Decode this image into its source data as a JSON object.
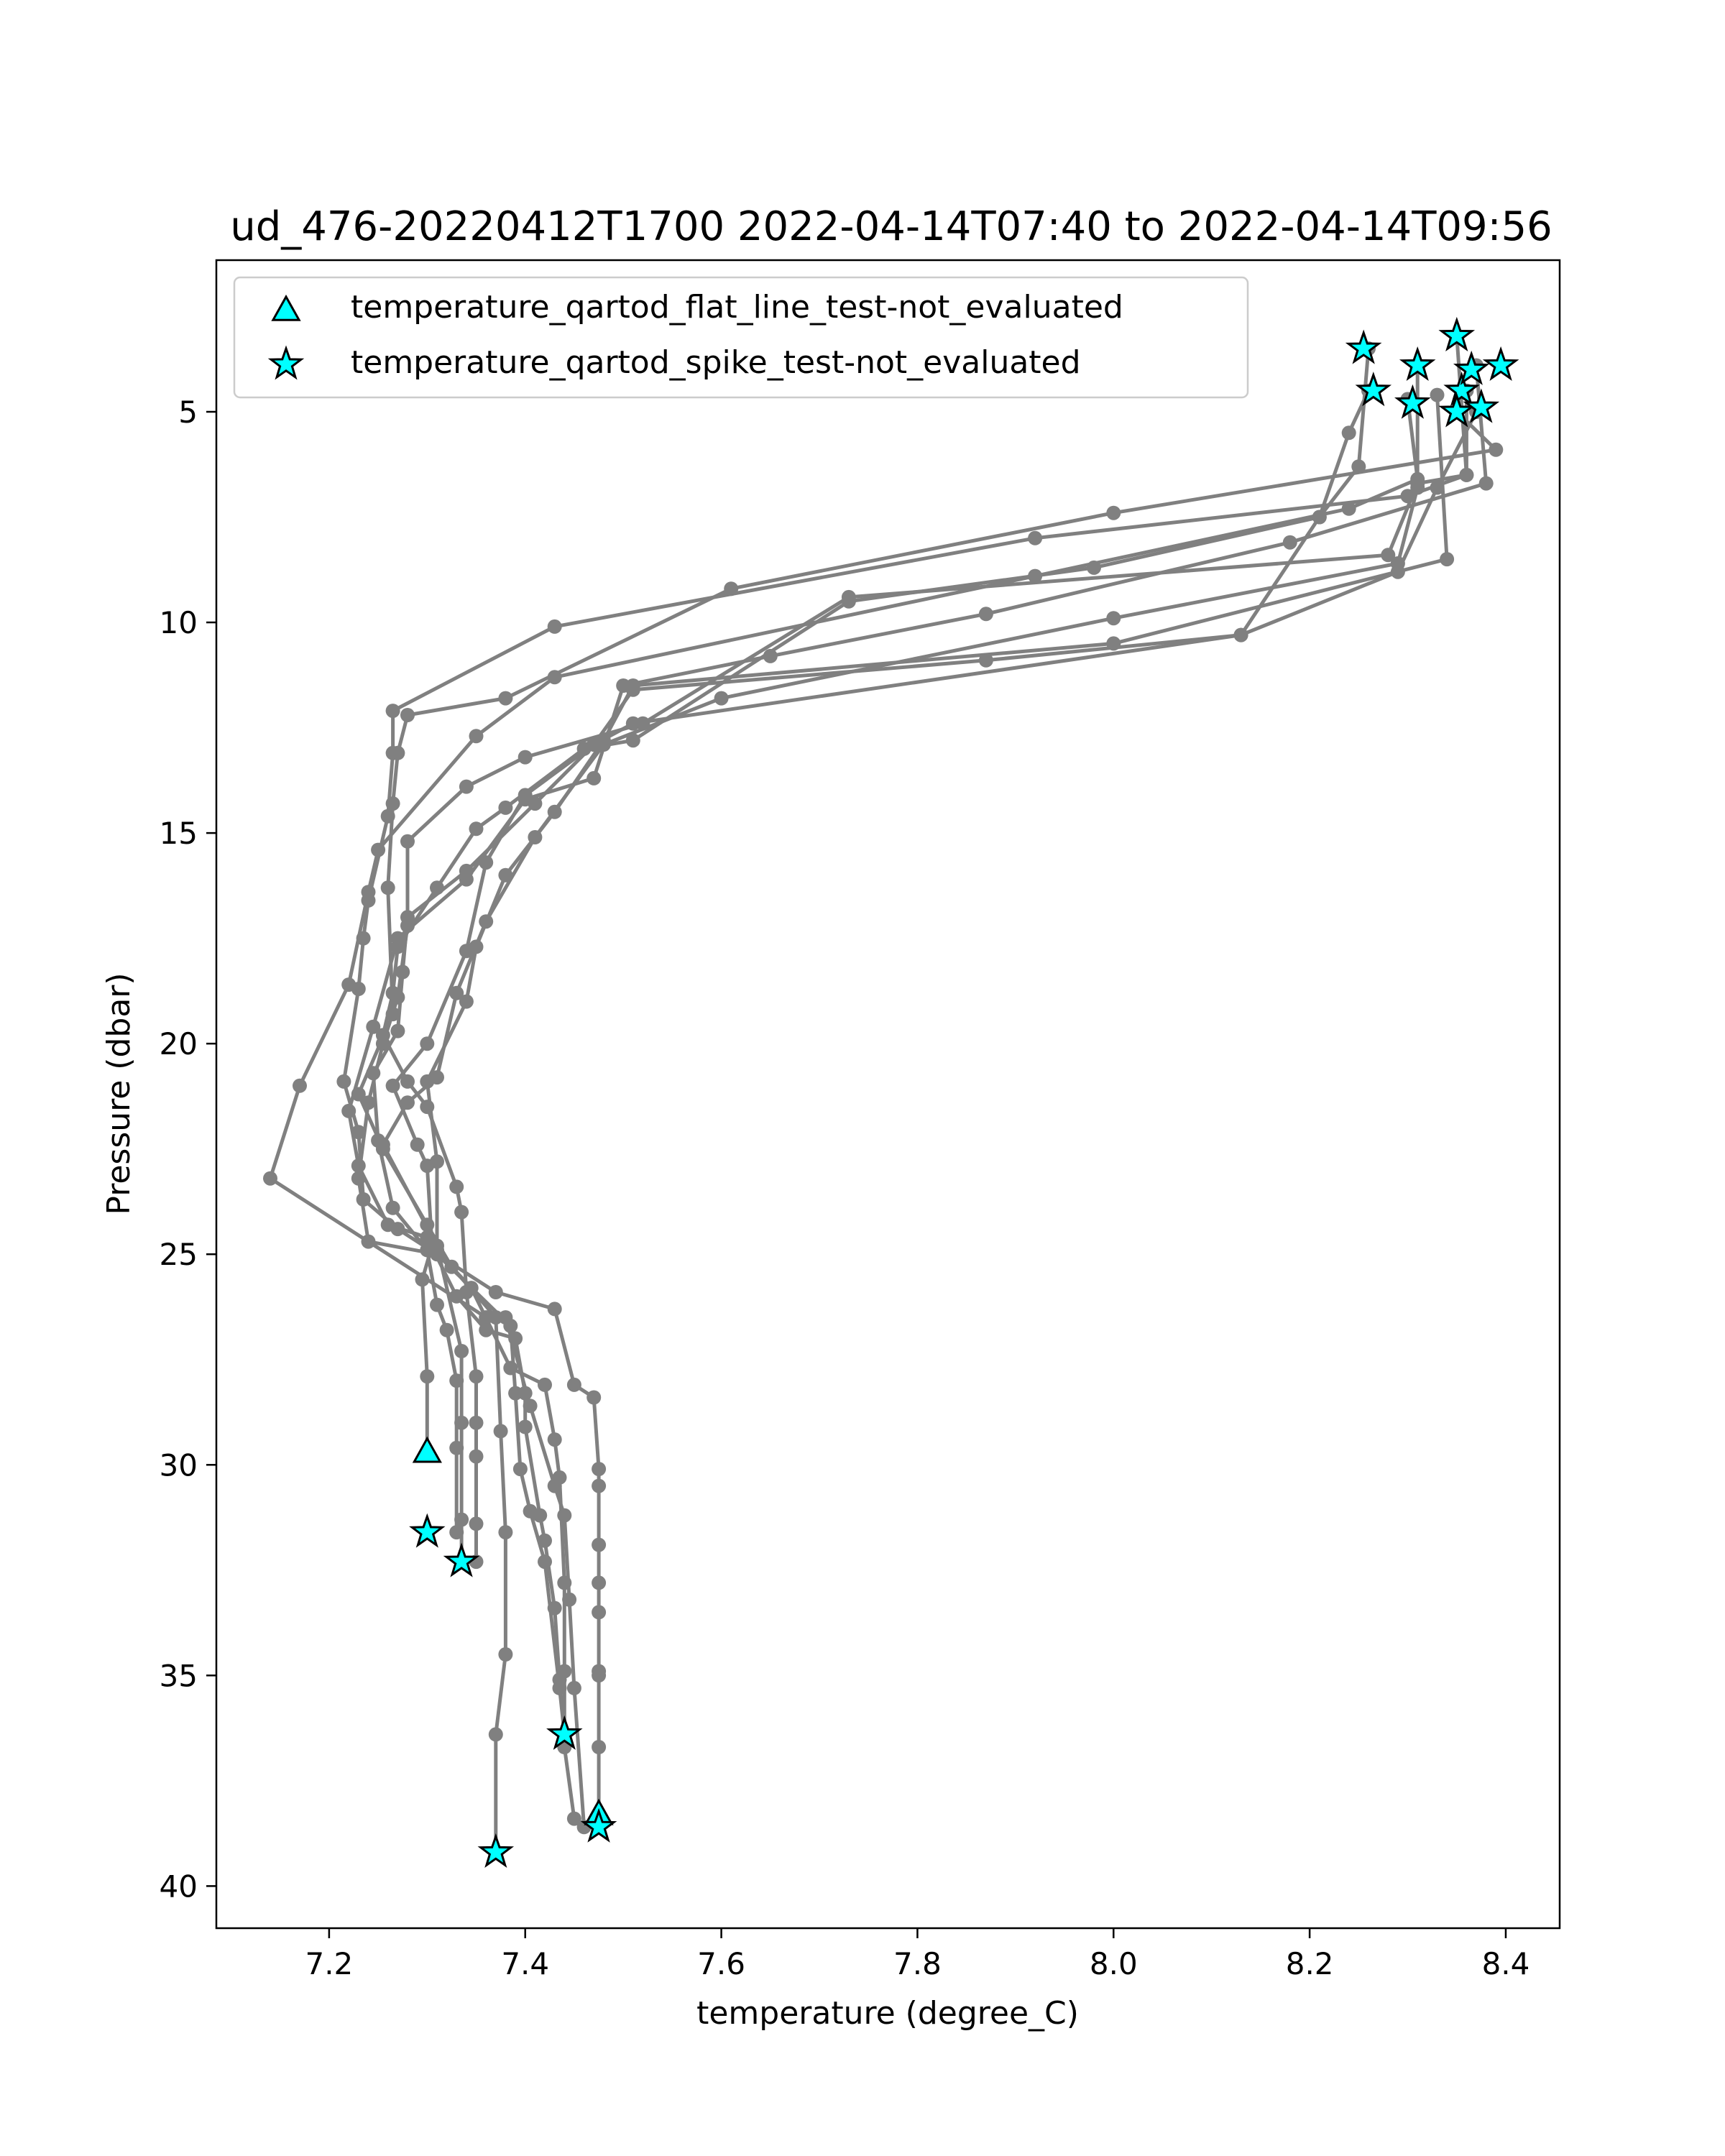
{
  "chart_data": {
    "type": "line",
    "title": "ud_476-20220412T1700 2022-04-14T07:40 to 2022-04-14T09:56",
    "xlabel": "temperature (degree_C)",
    "ylabel": "Pressure (dbar)",
    "xlim": [
      7.085,
      8.455
    ],
    "ylim": [
      41.0,
      1.4
    ],
    "y_inverted": true,
    "xticks": [
      7.2,
      7.4,
      7.6,
      7.8,
      8.0,
      8.2,
      8.4
    ],
    "xtick_labels": [
      "7.2",
      "7.4",
      "7.6",
      "7.8",
      "8.0",
      "8.2",
      "8.4"
    ],
    "yticks": [
      5,
      10,
      15,
      20,
      25,
      30,
      35,
      40
    ],
    "ytick_labels": [
      "5",
      "10",
      "15",
      "20",
      "25",
      "30",
      "35",
      "40"
    ],
    "grid": false,
    "legend_position": "top-left",
    "line_color": "#808080",
    "marker_color": "#00ffff",
    "legend": [
      {
        "label": "temperature_qartod_flat_line_test-not_evaluated",
        "marker": "triangle"
      },
      {
        "label": "temperature_qartod_spike_test-not_evaluated",
        "marker": "star"
      }
    ],
    "profiles": [
      {
        "points": [
          [
            8.33,
            4.6
          ],
          [
            8.34,
            8.5
          ],
          [
            8.0,
            10.5
          ],
          [
            7.51,
            11.5
          ],
          [
            7.48,
            12.8
          ],
          [
            7.43,
            14.5
          ],
          [
            7.38,
            16.0
          ],
          [
            7.35,
            17.7
          ],
          [
            7.34,
            19.0
          ],
          [
            7.3,
            20.9
          ],
          [
            7.31,
            22.8
          ],
          [
            7.31,
            24.9
          ],
          [
            7.37,
            26.5
          ],
          [
            7.375,
            29.2
          ],
          [
            7.38,
            31.6
          ],
          [
            7.38,
            34.5
          ],
          [
            7.37,
            36.4
          ],
          [
            7.37,
            39.2
          ]
        ]
      },
      {
        "points": [
          [
            8.37,
            3.9
          ],
          [
            8.38,
            6.7
          ],
          [
            8.18,
            8.1
          ],
          [
            7.87,
            9.8
          ],
          [
            7.65,
            10.8
          ],
          [
            7.5,
            11.5
          ],
          [
            7.47,
            13.7
          ],
          [
            7.4,
            14.2
          ],
          [
            7.34,
            16.1
          ],
          [
            7.27,
            17.5
          ],
          [
            7.245,
            19.6
          ],
          [
            7.22,
            21.6
          ],
          [
            7.23,
            22.9
          ],
          [
            7.26,
            24.3
          ],
          [
            7.3,
            24.6
          ],
          [
            7.33,
            26.0
          ],
          [
            7.36,
            26.8
          ],
          [
            7.39,
            27.0
          ],
          [
            7.4,
            28.3
          ],
          [
            7.4,
            29.1
          ],
          [
            7.415,
            31.2
          ],
          [
            7.42,
            31.8
          ],
          [
            7.43,
            33.4
          ],
          [
            7.435,
            35.1
          ],
          [
            7.44,
            36.4
          ]
        ]
      },
      {
        "points": [
          [
            8.36,
            4.5
          ],
          [
            8.36,
            6.5
          ],
          [
            8.31,
            6.7
          ],
          [
            8.28,
            8.4
          ],
          [
            7.73,
            9.4
          ],
          [
            7.52,
            12.4
          ],
          [
            7.4,
            13.2
          ],
          [
            7.34,
            13.9
          ],
          [
            7.28,
            15.2
          ],
          [
            7.28,
            17.2
          ],
          [
            7.27,
            18.9
          ],
          [
            7.255,
            20.0
          ],
          [
            7.24,
            21.4
          ],
          [
            7.23,
            23.2
          ],
          [
            7.24,
            24.7
          ],
          [
            7.31,
            25.0
          ],
          [
            7.385,
            26.7
          ],
          [
            7.39,
            28.3
          ],
          [
            7.395,
            30.1
          ],
          [
            7.405,
            31.1
          ],
          [
            7.42,
            32.3
          ],
          [
            7.435,
            35.3
          ],
          [
            7.44,
            36.4
          ]
        ]
      },
      {
        "points": [
          [
            8.35,
            5.0
          ],
          [
            8.39,
            5.9
          ],
          [
            8.0,
            7.4
          ],
          [
            7.61,
            9.2
          ],
          [
            7.38,
            11.8
          ],
          [
            7.28,
            12.2
          ],
          [
            7.27,
            13.1
          ],
          [
            7.265,
            14.3
          ],
          [
            7.26,
            16.3
          ],
          [
            7.265,
            19.3
          ],
          [
            7.23,
            21.2
          ],
          [
            7.255,
            22.5
          ],
          [
            7.3,
            24.3
          ],
          [
            7.325,
            25.3
          ],
          [
            7.345,
            25.8
          ],
          [
            7.385,
            27.7
          ],
          [
            7.42,
            28.1
          ],
          [
            7.43,
            29.4
          ],
          [
            7.435,
            30.3
          ],
          [
            7.44,
            32.8
          ],
          [
            7.44,
            34.9
          ],
          [
            7.44,
            36.7
          ],
          [
            7.45,
            38.4
          ]
        ]
      },
      {
        "points": [
          [
            8.35,
            3.2
          ],
          [
            8.36,
            6.5
          ],
          [
            8.3,
            7.0
          ],
          [
            7.92,
            8.0
          ],
          [
            7.43,
            10.1
          ],
          [
            7.265,
            12.1
          ],
          [
            7.265,
            13.1
          ],
          [
            7.26,
            14.6
          ],
          [
            7.24,
            16.6
          ],
          [
            7.235,
            17.5
          ],
          [
            7.23,
            18.7
          ],
          [
            7.215,
            20.9
          ],
          [
            7.23,
            22.1
          ],
          [
            7.235,
            23.7
          ],
          [
            7.27,
            24.4
          ],
          [
            7.37,
            25.9
          ],
          [
            7.43,
            26.3
          ],
          [
            7.45,
            28.1
          ],
          [
            7.47,
            28.4
          ],
          [
            7.475,
            30.1
          ],
          [
            7.475,
            30.5
          ],
          [
            7.475,
            31.9
          ],
          [
            7.475,
            32.8
          ],
          [
            7.475,
            33.5
          ],
          [
            7.475,
            34.9
          ],
          [
            7.475,
            35.0
          ],
          [
            7.475,
            36.7
          ],
          [
            7.475,
            38.4
          ]
        ]
      },
      {
        "points": [
          [
            8.3,
            4.7
          ],
          [
            8.31,
            6.6
          ],
          [
            8.24,
            7.3
          ],
          [
            7.92,
            8.9
          ],
          [
            7.43,
            11.3
          ],
          [
            7.35,
            12.7
          ],
          [
            7.25,
            15.4
          ],
          [
            7.24,
            16.4
          ],
          [
            7.22,
            18.6
          ],
          [
            7.17,
            21.0
          ],
          [
            7.14,
            23.2
          ],
          [
            7.36,
            26.5
          ],
          [
            7.38,
            26.5
          ],
          [
            7.405,
            28.6
          ],
          [
            7.43,
            30.5
          ],
          [
            7.44,
            31.2
          ],
          [
            7.445,
            33.2
          ],
          [
            7.45,
            35.3
          ],
          [
            7.46,
            38.6
          ]
        ]
      },
      {
        "points": [
          [
            8.26,
            3.5
          ],
          [
            8.25,
            6.3
          ],
          [
            8.21,
            7.5
          ],
          [
            7.98,
            8.7
          ],
          [
            7.73,
            9.5
          ],
          [
            7.51,
            12.8
          ],
          [
            7.46,
            13.0
          ],
          [
            7.38,
            14.4
          ],
          [
            7.35,
            14.9
          ],
          [
            7.31,
            16.3
          ],
          [
            7.27,
            17.7
          ],
          [
            7.265,
            18.8
          ],
          [
            7.255,
            19.8
          ],
          [
            7.28,
            20.9
          ],
          [
            7.3,
            21.5
          ],
          [
            7.33,
            23.4
          ],
          [
            7.335,
            24.0
          ],
          [
            7.34,
            25.9
          ],
          [
            7.35,
            27.9
          ],
          [
            7.35,
            29.0
          ],
          [
            7.35,
            29.8
          ],
          [
            7.35,
            31.4
          ],
          [
            7.35,
            32.3
          ]
        ]
      },
      {
        "points": [
          [
            8.26,
            4.5
          ],
          [
            8.24,
            5.5
          ],
          [
            8.21,
            7.5
          ],
          [
            8.13,
            10.3
          ],
          [
            7.87,
            10.9
          ],
          [
            7.51,
            11.6
          ],
          [
            7.47,
            12.9
          ],
          [
            7.4,
            14.1
          ],
          [
            7.36,
            15.7
          ],
          [
            7.34,
            17.8
          ],
          [
            7.3,
            20.0
          ],
          [
            7.265,
            21.0
          ],
          [
            7.29,
            22.4
          ],
          [
            7.3,
            22.9
          ],
          [
            7.305,
            24.8
          ],
          [
            7.295,
            25.6
          ],
          [
            7.3,
            27.9
          ],
          [
            7.3,
            29.7
          ]
        ]
      },
      {
        "points": [
          [
            8.31,
            3.9
          ],
          [
            8.31,
            6.8
          ],
          [
            8.29,
            8.6
          ],
          [
            8.0,
            9.9
          ],
          [
            7.6,
            11.8
          ],
          [
            7.48,
            12.9
          ],
          [
            7.41,
            15.1
          ],
          [
            7.36,
            17.1
          ],
          [
            7.33,
            18.8
          ],
          [
            7.31,
            20.8
          ],
          [
            7.28,
            21.4
          ],
          [
            7.255,
            22.4
          ],
          [
            7.31,
            24.8
          ],
          [
            7.335,
            27.3
          ],
          [
            7.335,
            29.0
          ],
          [
            7.335,
            31.3
          ],
          [
            7.335,
            32.3
          ]
        ]
      },
      {
        "points": [
          [
            8.37,
            5.0
          ],
          [
            8.33,
            6.8
          ],
          [
            8.29,
            8.8
          ],
          [
            8.13,
            10.3
          ],
          [
            7.51,
            12.4
          ],
          [
            7.47,
            12.9
          ],
          [
            7.41,
            14.3
          ],
          [
            7.34,
            15.9
          ],
          [
            7.28,
            17.0
          ],
          [
            7.275,
            18.3
          ],
          [
            7.27,
            19.7
          ],
          [
            7.245,
            20.7
          ],
          [
            7.25,
            22.3
          ],
          [
            7.265,
            23.9
          ],
          [
            7.3,
            24.9
          ],
          [
            7.31,
            26.2
          ],
          [
            7.32,
            26.8
          ],
          [
            7.33,
            28.0
          ],
          [
            7.33,
            29.6
          ],
          [
            7.33,
            31.6
          ]
        ]
      }
    ],
    "flat_line_markers": [
      [
        7.3,
        29.7
      ],
      [
        7.475,
        38.3
      ]
    ],
    "spike_markers": [
      [
        8.255,
        3.5
      ],
      [
        8.265,
        4.5
      ],
      [
        8.31,
        3.9
      ],
      [
        8.305,
        4.8
      ],
      [
        8.35,
        3.2
      ],
      [
        8.355,
        4.5
      ],
      [
        8.35,
        5.0
      ],
      [
        8.365,
        4.0
      ],
      [
        8.375,
        4.9
      ],
      [
        8.395,
        3.9
      ],
      [
        7.3,
        31.6
      ],
      [
        7.335,
        32.3
      ],
      [
        7.44,
        36.4
      ],
      [
        7.37,
        39.2
      ],
      [
        7.475,
        38.6
      ]
    ]
  }
}
